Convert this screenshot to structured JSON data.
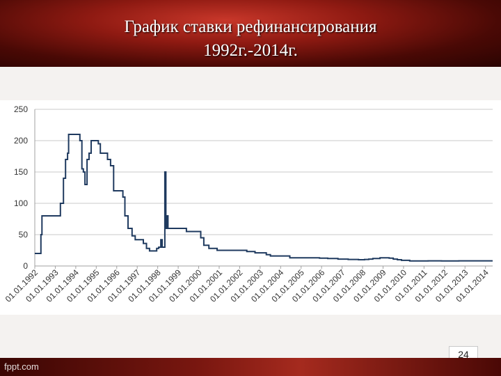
{
  "slide": {
    "title_line1": "График ставки рефинансирования",
    "title_line2": "1992г.-2014г.",
    "page_number": "24",
    "footer_text": "fppt.com"
  },
  "chart_data": {
    "type": "line",
    "title": "",
    "xlabel": "",
    "ylabel": "",
    "ylim": [
      0,
      250
    ],
    "yticks": [
      0,
      50,
      100,
      150,
      200,
      250
    ],
    "grid": "horizontal",
    "xlim": [
      1992.0,
      2014.35
    ],
    "xtick_labels": [
      "01.01.1992",
      "01.01.1993",
      "01.01.1994",
      "01.01.1995",
      "01.01.1996",
      "01.01.1997",
      "01.01.1998",
      "01.01.1999",
      "01.01.2000",
      "01.01.2001",
      "01.01.2002",
      "01.01.2003",
      "01.01.2004",
      "01.01.2005",
      "01.01.2006",
      "01.01.2007",
      "01.01.2008",
      "01.01.2009",
      "01.01.2010",
      "01.01.2011",
      "01.01.2012",
      "01.01.2013",
      "01.01.2014"
    ],
    "line_color": "#1f3a5f",
    "points": [
      [
        1992.0,
        20
      ],
      [
        1992.3,
        20
      ],
      [
        1992.3,
        50
      ],
      [
        1992.35,
        50
      ],
      [
        1992.35,
        80
      ],
      [
        1993.25,
        80
      ],
      [
        1993.25,
        100
      ],
      [
        1993.4,
        100
      ],
      [
        1993.4,
        140
      ],
      [
        1993.5,
        140
      ],
      [
        1993.5,
        170
      ],
      [
        1993.6,
        170
      ],
      [
        1993.6,
        180
      ],
      [
        1993.65,
        180
      ],
      [
        1993.65,
        210
      ],
      [
        1994.2,
        210
      ],
      [
        1994.2,
        200
      ],
      [
        1994.3,
        200
      ],
      [
        1994.3,
        155
      ],
      [
        1994.37,
        155
      ],
      [
        1994.37,
        150
      ],
      [
        1994.45,
        150
      ],
      [
        1994.45,
        130
      ],
      [
        1994.55,
        130
      ],
      [
        1994.55,
        170
      ],
      [
        1994.65,
        170
      ],
      [
        1994.65,
        180
      ],
      [
        1994.75,
        180
      ],
      [
        1994.75,
        200
      ],
      [
        1995.1,
        200
      ],
      [
        1995.1,
        195
      ],
      [
        1995.2,
        195
      ],
      [
        1995.2,
        180
      ],
      [
        1995.55,
        180
      ],
      [
        1995.55,
        170
      ],
      [
        1995.7,
        170
      ],
      [
        1995.7,
        160
      ],
      [
        1995.85,
        160
      ],
      [
        1995.85,
        120
      ],
      [
        1996.3,
        120
      ],
      [
        1996.3,
        110
      ],
      [
        1996.4,
        110
      ],
      [
        1996.4,
        80
      ],
      [
        1996.55,
        80
      ],
      [
        1996.55,
        60
      ],
      [
        1996.75,
        60
      ],
      [
        1996.75,
        48
      ],
      [
        1996.9,
        48
      ],
      [
        1996.9,
        42
      ],
      [
        1997.3,
        42
      ],
      [
        1997.3,
        36
      ],
      [
        1997.45,
        36
      ],
      [
        1997.45,
        28
      ],
      [
        1997.6,
        28
      ],
      [
        1997.6,
        24
      ],
      [
        1997.95,
        24
      ],
      [
        1997.95,
        28
      ],
      [
        1998.05,
        28
      ],
      [
        1998.05,
        30
      ],
      [
        1998.15,
        30
      ],
      [
        1998.15,
        42
      ],
      [
        1998.22,
        42
      ],
      [
        1998.22,
        30
      ],
      [
        1998.35,
        30
      ],
      [
        1998.35,
        150
      ],
      [
        1998.4,
        150
      ],
      [
        1998.4,
        60
      ],
      [
        1998.45,
        60
      ],
      [
        1998.45,
        80
      ],
      [
        1998.5,
        80
      ],
      [
        1998.5,
        60
      ],
      [
        1999.4,
        60
      ],
      [
        1999.4,
        55
      ],
      [
        2000.1,
        55
      ],
      [
        2000.1,
        45
      ],
      [
        2000.25,
        45
      ],
      [
        2000.25,
        33
      ],
      [
        2000.5,
        33
      ],
      [
        2000.5,
        28
      ],
      [
        2000.9,
        28
      ],
      [
        2000.9,
        25
      ],
      [
        2002.35,
        25
      ],
      [
        2002.35,
        23
      ],
      [
        2002.75,
        23
      ],
      [
        2002.75,
        21
      ],
      [
        2003.3,
        21
      ],
      [
        2003.3,
        18
      ],
      [
        2003.5,
        18
      ],
      [
        2003.5,
        16
      ],
      [
        2004.45,
        16
      ],
      [
        2004.45,
        13
      ],
      [
        2005.9,
        13
      ],
      [
        2005.9,
        12.5
      ],
      [
        2006.3,
        12.5
      ],
      [
        2006.3,
        12
      ],
      [
        2006.8,
        12
      ],
      [
        2006.8,
        11
      ],
      [
        2007.3,
        11
      ],
      [
        2007.3,
        10.5
      ],
      [
        2007.8,
        10.5
      ],
      [
        2007.8,
        10
      ],
      [
        2008.1,
        10
      ],
      [
        2008.1,
        10.5
      ],
      [
        2008.3,
        10.5
      ],
      [
        2008.3,
        11
      ],
      [
        2008.5,
        11
      ],
      [
        2008.5,
        12
      ],
      [
        2008.85,
        12
      ],
      [
        2008.85,
        13
      ],
      [
        2009.3,
        13
      ],
      [
        2009.3,
        12.5
      ],
      [
        2009.5,
        12.5
      ],
      [
        2009.5,
        11
      ],
      [
        2009.7,
        11
      ],
      [
        2009.7,
        10
      ],
      [
        2009.9,
        10
      ],
      [
        2009.9,
        9
      ],
      [
        2010.3,
        9
      ],
      [
        2010.3,
        8
      ],
      [
        2011.2,
        8
      ],
      [
        2011.2,
        8.25
      ],
      [
        2011.45,
        8.25
      ],
      [
        2011.45,
        8.25
      ],
      [
        2011.85,
        8.25
      ],
      [
        2011.85,
        8
      ],
      [
        2012.7,
        8
      ],
      [
        2012.7,
        8.25
      ],
      [
        2014.35,
        8.25
      ]
    ]
  }
}
